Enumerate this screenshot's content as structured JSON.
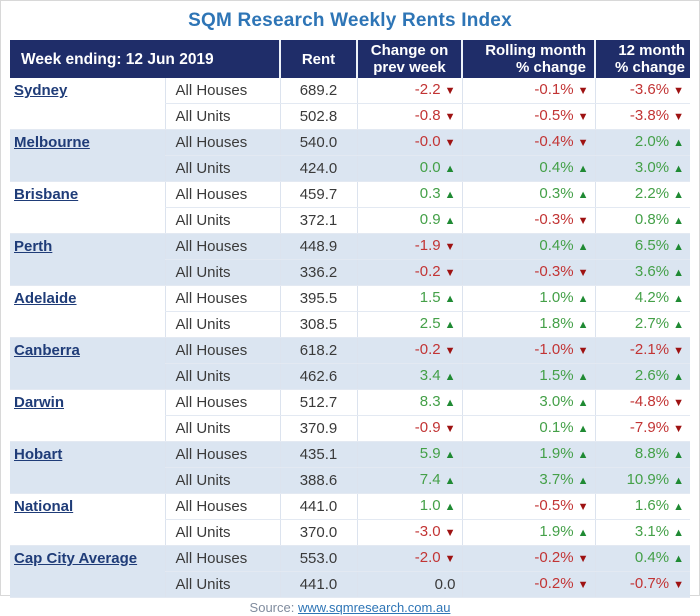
{
  "chart_data": {
    "type": "table",
    "title": "SQM Research Weekly Rents Index",
    "header": {
      "week_ending": "Week ending: 12 Jun 2019",
      "rent": "Rent",
      "change_prev_week": "Change on prev week",
      "rolling_month": "Rolling month % change",
      "twelve_month": "12 month % change"
    },
    "row_types": [
      "All Houses",
      "All Units"
    ],
    "rows": [
      {
        "name": "Sydney",
        "houses": {
          "rent": "689.2",
          "change": "-2.2",
          "change_dir": "down",
          "rolling": "-0.1%",
          "rolling_dir": "down",
          "year": "-3.6%",
          "year_dir": "down"
        },
        "units": {
          "rent": "502.8",
          "change": "-0.8",
          "change_dir": "down",
          "rolling": "-0.5%",
          "rolling_dir": "down",
          "year": "-3.8%",
          "year_dir": "down"
        }
      },
      {
        "name": "Melbourne",
        "houses": {
          "rent": "540.0",
          "change": "-0.0",
          "change_dir": "down",
          "rolling": "-0.4%",
          "rolling_dir": "down",
          "year": "2.0%",
          "year_dir": "up"
        },
        "units": {
          "rent": "424.0",
          "change": "0.0",
          "change_dir": "up",
          "rolling": "0.4%",
          "rolling_dir": "up",
          "year": "3.0%",
          "year_dir": "up"
        }
      },
      {
        "name": "Brisbane",
        "houses": {
          "rent": "459.7",
          "change": "0.3",
          "change_dir": "up",
          "rolling": "0.3%",
          "rolling_dir": "up",
          "year": "2.2%",
          "year_dir": "up"
        },
        "units": {
          "rent": "372.1",
          "change": "0.9",
          "change_dir": "up",
          "rolling": "-0.3%",
          "rolling_dir": "down",
          "year": "0.8%",
          "year_dir": "up"
        }
      },
      {
        "name": "Perth",
        "houses": {
          "rent": "448.9",
          "change": "-1.9",
          "change_dir": "down",
          "rolling": "0.4%",
          "rolling_dir": "up",
          "year": "6.5%",
          "year_dir": "up"
        },
        "units": {
          "rent": "336.2",
          "change": "-0.2",
          "change_dir": "down",
          "rolling": "-0.3%",
          "rolling_dir": "down",
          "year": "3.6%",
          "year_dir": "up"
        }
      },
      {
        "name": "Adelaide",
        "houses": {
          "rent": "395.5",
          "change": "1.5",
          "change_dir": "up",
          "rolling": "1.0%",
          "rolling_dir": "up",
          "year": "4.2%",
          "year_dir": "up"
        },
        "units": {
          "rent": "308.5",
          "change": "2.5",
          "change_dir": "up",
          "rolling": "1.8%",
          "rolling_dir": "up",
          "year": "2.7%",
          "year_dir": "up"
        }
      },
      {
        "name": "Canberra",
        "houses": {
          "rent": "618.2",
          "change": "-0.2",
          "change_dir": "down",
          "rolling": "-1.0%",
          "rolling_dir": "down",
          "year": "-2.1%",
          "year_dir": "down"
        },
        "units": {
          "rent": "462.6",
          "change": "3.4",
          "change_dir": "up",
          "rolling": "1.5%",
          "rolling_dir": "up",
          "year": "2.6%",
          "year_dir": "up"
        }
      },
      {
        "name": "Darwin",
        "houses": {
          "rent": "512.7",
          "change": "8.3",
          "change_dir": "up",
          "rolling": "3.0%",
          "rolling_dir": "up",
          "year": "-4.8%",
          "year_dir": "down"
        },
        "units": {
          "rent": "370.9",
          "change": "-0.9",
          "change_dir": "down",
          "rolling": "0.1%",
          "rolling_dir": "up",
          "year": "-7.9%",
          "year_dir": "down"
        }
      },
      {
        "name": "Hobart",
        "houses": {
          "rent": "435.1",
          "change": "5.9",
          "change_dir": "up",
          "rolling": "1.9%",
          "rolling_dir": "up",
          "year": "8.8%",
          "year_dir": "up"
        },
        "units": {
          "rent": "388.6",
          "change": "7.4",
          "change_dir": "up",
          "rolling": "3.7%",
          "rolling_dir": "up",
          "year": "10.9%",
          "year_dir": "up"
        }
      },
      {
        "name": "National",
        "houses": {
          "rent": "441.0",
          "change": "1.0",
          "change_dir": "up",
          "rolling": "-0.5%",
          "rolling_dir": "down",
          "year": "1.6%",
          "year_dir": "up"
        },
        "units": {
          "rent": "370.0",
          "change": "-3.0",
          "change_dir": "down",
          "rolling": "1.9%",
          "rolling_dir": "up",
          "year": "3.1%",
          "year_dir": "up"
        }
      },
      {
        "name": "Cap City Average",
        "houses": {
          "rent": "553.0",
          "change": "-2.0",
          "change_dir": "down",
          "rolling": "-0.2%",
          "rolling_dir": "down",
          "year": "0.4%",
          "year_dir": "up"
        },
        "units": {
          "rent": "441.0",
          "change": "0.0",
          "change_dir": "none",
          "rolling": "-0.2%",
          "rolling_dir": "down",
          "year": "-0.7%",
          "year_dir": "down"
        }
      }
    ]
  },
  "icons": {
    "up-arrow": "▲",
    "down-arrow": "▼"
  },
  "colors": {
    "header_bg": "#1F2D69",
    "title_blue": "#2E75B6",
    "row_alt_blue": "#DBE5F1",
    "down_red": "#C23434",
    "up_green": "#44A048",
    "city_navy": "#1F3C78"
  },
  "source": {
    "label": "Source:",
    "link": "www.sqmresearch.com.au"
  }
}
